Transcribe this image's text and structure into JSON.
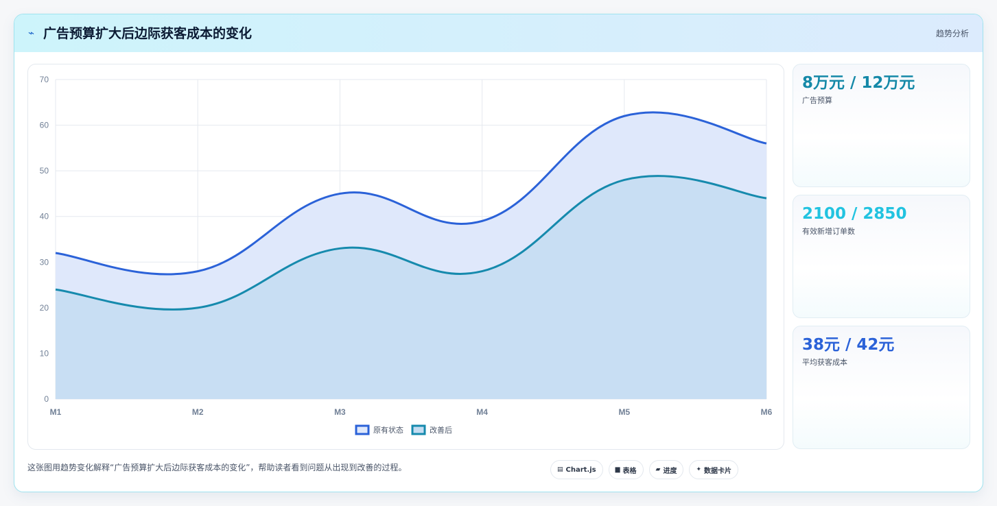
{
  "header": {
    "icon": "chart-trend-icon",
    "title": "广告预算扩大后边际获客成本的变化",
    "tag": "趋势分析"
  },
  "chart_data": {
    "type": "area",
    "categories": [
      "M1",
      "M2",
      "M3",
      "M4",
      "M5",
      "M6"
    ],
    "series": [
      {
        "name": "原有状态",
        "values": [
          32,
          28,
          45,
          39,
          62,
          56
        ],
        "color": "#2b62d8",
        "fill": "#dfe8fb"
      },
      {
        "name": "改善后",
        "values": [
          24,
          20,
          33,
          28,
          48,
          44
        ],
        "color": "#168aad",
        "fill": "#c4dcf1"
      }
    ],
    "ylim": [
      0,
      70
    ],
    "yticks": [
      0,
      10,
      20,
      30,
      40,
      50,
      60,
      70
    ],
    "grid": true,
    "legend": "bottom"
  },
  "stats": [
    {
      "value": "8万元 / 12万元",
      "label": "广告预算",
      "color": "#1589a8"
    },
    {
      "value": "2100 / 2850",
      "label": "有效新增订单数",
      "color": "#22c3e0"
    },
    {
      "value": "38元 / 42元",
      "label": "平均获客成本",
      "color": "#2b62d8"
    }
  ],
  "footer": {
    "text": "这张图用趋势变化解释“广告预算扩大后边际获客成本的变化”，帮助读者看到问题从出现到改善的过程。",
    "tags": [
      {
        "icon": "chart-icon",
        "glyph": "▤",
        "label": "Chart.js"
      },
      {
        "icon": "table-icon",
        "glyph": "▆",
        "label": "表格"
      },
      {
        "icon": "progress-icon",
        "glyph": "▰",
        "label": "进度"
      },
      {
        "icon": "sparkle-icon",
        "glyph": "✦",
        "label": "数据卡片"
      }
    ]
  }
}
